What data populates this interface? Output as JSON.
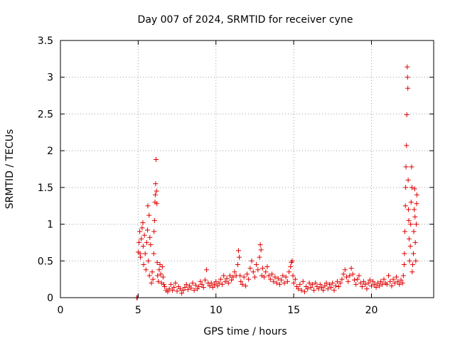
{
  "chart_data": {
    "type": "scatter",
    "title": "Day 007 of 2024, SRMTID for receiver cyne",
    "xlabel": "GPS time / hours",
    "ylabel": "SRMTID / TECUs",
    "xlim": [
      0,
      24
    ],
    "ylim": [
      0,
      3.5
    ],
    "xticks": [
      0,
      5,
      10,
      15,
      20
    ],
    "xtick_labels": [
      "0",
      "5",
      "10",
      "15",
      "20"
    ],
    "yticks": [
      0,
      0.5,
      1,
      1.5,
      2,
      2.5,
      3,
      3.5
    ],
    "ytick_labels": [
      "0",
      "0.5",
      "1",
      "1.5",
      "2",
      "2.5",
      "3",
      "3.5"
    ],
    "grid": true,
    "marker": "+",
    "marker_color": "#e00000",
    "series": [
      {
        "name": "SRMTID",
        "points": [
          [
            4.9,
            0.0
          ],
          [
            4.95,
            0.0
          ],
          [
            5.0,
            0.62
          ],
          [
            5.05,
            0.75
          ],
          [
            5.1,
            0.9
          ],
          [
            5.12,
            0.6
          ],
          [
            5.15,
            0.55
          ],
          [
            5.2,
            0.8
          ],
          [
            5.25,
            0.95
          ],
          [
            5.3,
            1.02
          ],
          [
            5.32,
            0.7
          ],
          [
            5.35,
            0.45
          ],
          [
            5.4,
            0.85
          ],
          [
            5.45,
            0.6
          ],
          [
            5.5,
            0.38
          ],
          [
            5.55,
            0.75
          ],
          [
            5.6,
            0.92
          ],
          [
            5.62,
            1.25
          ],
          [
            5.65,
            0.5
          ],
          [
            5.7,
            1.12
          ],
          [
            5.72,
            0.3
          ],
          [
            5.75,
            0.82
          ],
          [
            5.8,
            0.72
          ],
          [
            5.85,
            0.2
          ],
          [
            5.9,
            0.35
          ],
          [
            5.95,
            0.25
          ],
          [
            6.0,
            0.6
          ],
          [
            6.02,
            0.9
          ],
          [
            6.05,
            1.05
          ],
          [
            6.08,
            1.3
          ],
          [
            6.1,
            1.4
          ],
          [
            6.12,
            1.55
          ],
          [
            6.15,
            1.88
          ],
          [
            6.18,
            1.45
          ],
          [
            6.2,
            1.28
          ],
          [
            6.22,
            0.48
          ],
          [
            6.25,
            0.3
          ],
          [
            6.3,
            0.22
          ],
          [
            6.35,
            0.38
          ],
          [
            6.4,
            0.45
          ],
          [
            6.45,
            0.32
          ],
          [
            6.5,
            0.2
          ],
          [
            6.55,
            0.42
          ],
          [
            6.6,
            0.28
          ],
          [
            6.65,
            0.18
          ],
          [
            6.7,
            0.15
          ],
          [
            6.8,
            0.1
          ],
          [
            6.9,
            0.08
          ],
          [
            7.0,
            0.12
          ],
          [
            7.1,
            0.18
          ],
          [
            7.2,
            0.1
          ],
          [
            7.3,
            0.14
          ],
          [
            7.4,
            0.2
          ],
          [
            7.5,
            0.09
          ],
          [
            7.6,
            0.15
          ],
          [
            7.7,
            0.12
          ],
          [
            7.8,
            0.06
          ],
          [
            7.9,
            0.1
          ],
          [
            8.0,
            0.14
          ],
          [
            8.1,
            0.18
          ],
          [
            8.2,
            0.11
          ],
          [
            8.3,
            0.16
          ],
          [
            8.4,
            0.13
          ],
          [
            8.5,
            0.2
          ],
          [
            8.6,
            0.1
          ],
          [
            8.7,
            0.17
          ],
          [
            8.8,
            0.12
          ],
          [
            8.9,
            0.15
          ],
          [
            9.0,
            0.22
          ],
          [
            9.1,
            0.18
          ],
          [
            9.2,
            0.14
          ],
          [
            9.3,
            0.24
          ],
          [
            9.4,
            0.38
          ],
          [
            9.5,
            0.2
          ],
          [
            9.6,
            0.16
          ],
          [
            9.7,
            0.2
          ],
          [
            9.8,
            0.14
          ],
          [
            9.9,
            0.18
          ],
          [
            10.0,
            0.22
          ],
          [
            10.1,
            0.16
          ],
          [
            10.2,
            0.2
          ],
          [
            10.3,
            0.25
          ],
          [
            10.4,
            0.18
          ],
          [
            10.5,
            0.3
          ],
          [
            10.6,
            0.22
          ],
          [
            10.7,
            0.26
          ],
          [
            10.8,
            0.2
          ],
          [
            10.9,
            0.3
          ],
          [
            11.0,
            0.24
          ],
          [
            11.1,
            0.28
          ],
          [
            11.2,
            0.35
          ],
          [
            11.3,
            0.3
          ],
          [
            11.4,
            0.45
          ],
          [
            11.45,
            0.64
          ],
          [
            11.5,
            0.55
          ],
          [
            11.55,
            0.3
          ],
          [
            11.6,
            0.22
          ],
          [
            11.7,
            0.18
          ],
          [
            11.8,
            0.28
          ],
          [
            11.9,
            0.16
          ],
          [
            12.0,
            0.32
          ],
          [
            12.1,
            0.25
          ],
          [
            12.2,
            0.4
          ],
          [
            12.3,
            0.5
          ],
          [
            12.4,
            0.35
          ],
          [
            12.5,
            0.28
          ],
          [
            12.6,
            0.45
          ],
          [
            12.7,
            0.38
          ],
          [
            12.8,
            0.55
          ],
          [
            12.85,
            0.72
          ],
          [
            12.9,
            0.65
          ],
          [
            12.95,
            0.3
          ],
          [
            13.0,
            0.4
          ],
          [
            13.1,
            0.28
          ],
          [
            13.2,
            0.35
          ],
          [
            13.3,
            0.42
          ],
          [
            13.4,
            0.3
          ],
          [
            13.5,
            0.25
          ],
          [
            13.6,
            0.32
          ],
          [
            13.7,
            0.22
          ],
          [
            13.8,
            0.28
          ],
          [
            13.9,
            0.2
          ],
          [
            14.0,
            0.26
          ],
          [
            14.1,
            0.18
          ],
          [
            14.2,
            0.24
          ],
          [
            14.3,
            0.3
          ],
          [
            14.4,
            0.2
          ],
          [
            14.5,
            0.28
          ],
          [
            14.6,
            0.22
          ],
          [
            14.7,
            0.35
          ],
          [
            14.8,
            0.42
          ],
          [
            14.85,
            0.48
          ],
          [
            14.9,
            0.5
          ],
          [
            14.95,
            0.3
          ],
          [
            15.0,
            0.2
          ],
          [
            15.1,
            0.25
          ],
          [
            15.2,
            0.15
          ],
          [
            15.3,
            0.12
          ],
          [
            15.4,
            0.18
          ],
          [
            15.5,
            0.1
          ],
          [
            15.6,
            0.22
          ],
          [
            15.7,
            0.08
          ],
          [
            15.8,
            0.15
          ],
          [
            15.9,
            0.12
          ],
          [
            16.0,
            0.2
          ],
          [
            16.1,
            0.14
          ],
          [
            16.2,
            0.18
          ],
          [
            16.3,
            0.1
          ],
          [
            16.4,
            0.2
          ],
          [
            16.5,
            0.15
          ],
          [
            16.6,
            0.12
          ],
          [
            16.7,
            0.18
          ],
          [
            16.8,
            0.14
          ],
          [
            16.9,
            0.1
          ],
          [
            17.0,
            0.16
          ],
          [
            17.1,
            0.2
          ],
          [
            17.2,
            0.12
          ],
          [
            17.3,
            0.18
          ],
          [
            17.4,
            0.14
          ],
          [
            17.5,
            0.2
          ],
          [
            17.6,
            0.1
          ],
          [
            17.7,
            0.16
          ],
          [
            17.8,
            0.22
          ],
          [
            17.9,
            0.15
          ],
          [
            18.0,
            0.2
          ],
          [
            18.1,
            0.25
          ],
          [
            18.2,
            0.32
          ],
          [
            18.3,
            0.38
          ],
          [
            18.4,
            0.28
          ],
          [
            18.5,
            0.22
          ],
          [
            18.6,
            0.3
          ],
          [
            18.7,
            0.4
          ],
          [
            18.8,
            0.32
          ],
          [
            18.9,
            0.24
          ],
          [
            19.0,
            0.18
          ],
          [
            19.1,
            0.25
          ],
          [
            19.2,
            0.3
          ],
          [
            19.3,
            0.2
          ],
          [
            19.4,
            0.15
          ],
          [
            19.5,
            0.22
          ],
          [
            19.6,
            0.18
          ],
          [
            19.7,
            0.12
          ],
          [
            19.8,
            0.2
          ],
          [
            19.9,
            0.24
          ],
          [
            20.0,
            0.16
          ],
          [
            20.1,
            0.22
          ],
          [
            20.2,
            0.18
          ],
          [
            20.3,
            0.14
          ],
          [
            20.4,
            0.2
          ],
          [
            20.5,
            0.16
          ],
          [
            20.6,
            0.22
          ],
          [
            20.7,
            0.18
          ],
          [
            20.8,
            0.25
          ],
          [
            20.9,
            0.2
          ],
          [
            21.0,
            0.18
          ],
          [
            21.1,
            0.3
          ],
          [
            21.2,
            0.22
          ],
          [
            21.3,
            0.16
          ],
          [
            21.4,
            0.25
          ],
          [
            21.5,
            0.2
          ],
          [
            21.6,
            0.28
          ],
          [
            21.7,
            0.22
          ],
          [
            21.8,
            0.18
          ],
          [
            21.9,
            0.24
          ],
          [
            22.0,
            0.2
          ],
          [
            22.05,
            0.3
          ],
          [
            22.1,
            0.45
          ],
          [
            22.12,
            0.6
          ],
          [
            22.15,
            0.9
          ],
          [
            22.18,
            1.25
          ],
          [
            22.2,
            1.5
          ],
          [
            22.22,
            1.78
          ],
          [
            22.25,
            2.07
          ],
          [
            22.27,
            2.49
          ],
          [
            22.3,
            3.14
          ],
          [
            22.32,
            3.0
          ],
          [
            22.34,
            2.85
          ],
          [
            22.36,
            1.6
          ],
          [
            22.38,
            1.2
          ],
          [
            22.4,
            1.05
          ],
          [
            22.42,
            0.8
          ],
          [
            22.45,
            0.5
          ],
          [
            22.5,
            0.7
          ],
          [
            22.52,
            1.0
          ],
          [
            22.55,
            1.3
          ],
          [
            22.58,
            1.78
          ],
          [
            22.6,
            1.5
          ],
          [
            22.62,
            0.35
          ],
          [
            22.65,
            0.45
          ],
          [
            22.7,
            0.6
          ],
          [
            22.72,
            0.9
          ],
          [
            22.75,
            1.2
          ],
          [
            22.78,
            1.48
          ],
          [
            22.8,
            1.1
          ],
          [
            22.82,
            0.75
          ],
          [
            22.85,
            0.5
          ],
          [
            22.88,
            1.0
          ],
          [
            22.9,
            1.28
          ],
          [
            22.92,
            1.4
          ]
        ]
      }
    ]
  }
}
